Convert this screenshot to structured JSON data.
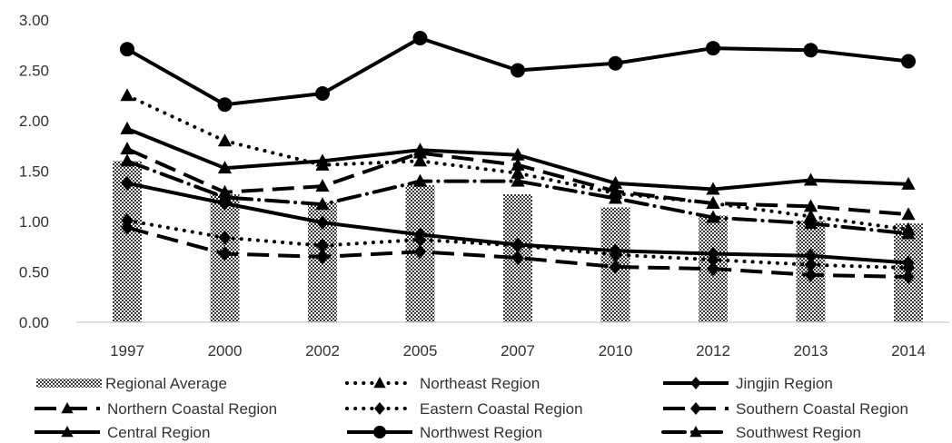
{
  "chart_data": {
    "type": "bar",
    "title": "",
    "xlabel": "",
    "ylabel": "",
    "ylim": [
      0,
      3
    ],
    "y_ticks": [
      "0.00",
      "0.50",
      "1.00",
      "1.50",
      "2.00",
      "2.50",
      "3.00"
    ],
    "categories": [
      "1997",
      "2000",
      "2002",
      "2005",
      "2007",
      "2010",
      "2012",
      "2013",
      "2014"
    ],
    "grid": false,
    "legend_position": "bottom",
    "series": [
      {
        "name": "Regional Average",
        "kind": "bar",
        "style": "hatched",
        "values": [
          1.6,
          1.27,
          1.19,
          1.36,
          1.27,
          1.14,
          1.06,
          1.01,
          0.98
        ]
      },
      {
        "name": "Northeast Region",
        "kind": "line",
        "dash": "dot",
        "marker": "triangle",
        "values": [
          2.25,
          1.8,
          1.56,
          1.6,
          1.48,
          1.28,
          1.18,
          1.05,
          0.92
        ]
      },
      {
        "name": "Jingjin Region",
        "kind": "line",
        "dash": "solid",
        "marker": "diamond",
        "values": [
          1.38,
          1.18,
          0.99,
          0.87,
          0.77,
          0.71,
          0.68,
          0.66,
          0.59
        ]
      },
      {
        "name": "Northern Coastal Region",
        "kind": "line",
        "dash": "dash",
        "marker": "triangle",
        "values": [
          1.72,
          1.29,
          1.35,
          1.68,
          1.56,
          1.3,
          1.18,
          1.15,
          1.07
        ]
      },
      {
        "name": "Eastern Coastal Region",
        "kind": "line",
        "dash": "dot",
        "marker": "diamond",
        "values": [
          1.01,
          0.84,
          0.76,
          0.82,
          0.76,
          0.67,
          0.62,
          0.57,
          0.54
        ]
      },
      {
        "name": "Southern Coastal Region",
        "kind": "line",
        "dash": "dash",
        "marker": "diamond",
        "values": [
          0.94,
          0.68,
          0.65,
          0.7,
          0.64,
          0.55,
          0.53,
          0.47,
          0.45
        ]
      },
      {
        "name": "Central Region",
        "kind": "line",
        "dash": "solid",
        "marker": "triangle",
        "values": [
          1.92,
          1.53,
          1.6,
          1.71,
          1.66,
          1.38,
          1.32,
          1.41,
          1.37
        ]
      },
      {
        "name": "Northwest Region",
        "kind": "line",
        "dash": "solid",
        "marker": "circle",
        "values": [
          2.71,
          2.16,
          2.27,
          2.82,
          2.5,
          2.57,
          2.72,
          2.7,
          2.59
        ]
      },
      {
        "name": "Southwest Region",
        "kind": "line",
        "dash": "dashdot",
        "marker": "triangle",
        "values": [
          1.6,
          1.24,
          1.17,
          1.4,
          1.4,
          1.23,
          1.04,
          0.98,
          0.88
        ]
      }
    ]
  }
}
